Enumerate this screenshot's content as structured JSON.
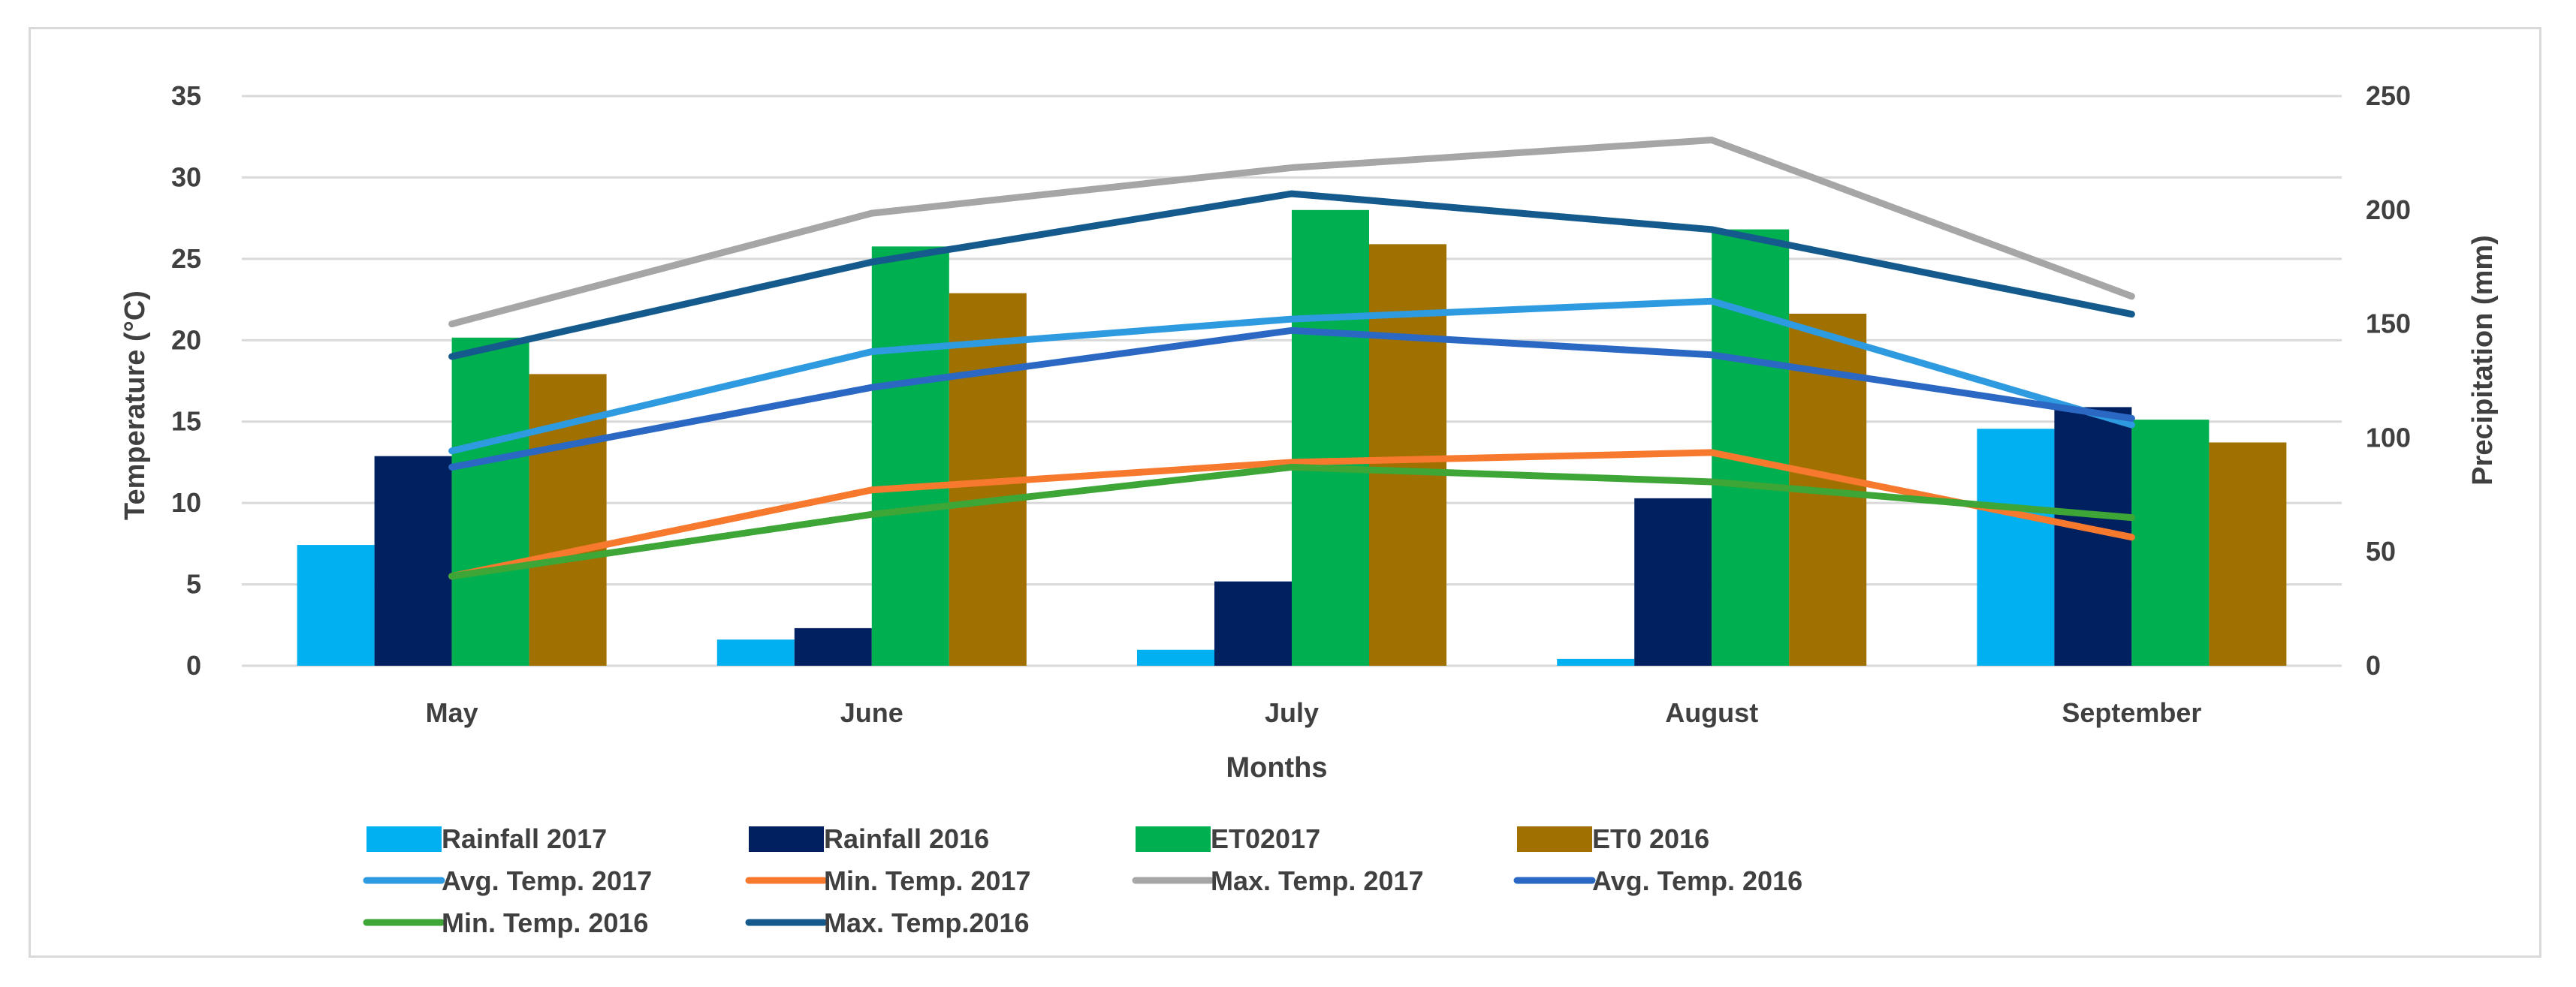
{
  "chart_data": {
    "type": "bar",
    "categories": [
      "May",
      "June",
      "July",
      "August",
      "September"
    ],
    "xlabel": "Months",
    "ylabel": "Temperature (°C)",
    "y2label": "Precipitation (mm)",
    "ylim": [
      0,
      35
    ],
    "y2lim": [
      0,
      250
    ],
    "yticks": [
      0,
      5,
      10,
      15,
      20,
      25,
      30,
      35
    ],
    "y2ticks": [
      0,
      50,
      100,
      150,
      200,
      250
    ],
    "grid": true,
    "legend_position": "bottom",
    "bar_series": [
      {
        "name": "Rainfall 2017",
        "color": "#00b0f0",
        "axis": "right",
        "values": [
          53,
          11.5,
          7,
          3,
          104
        ]
      },
      {
        "name": "Rainfall 2016",
        "color": "#002060",
        "axis": "right",
        "values": [
          92,
          16.5,
          37,
          73.5,
          113.5
        ]
      },
      {
        "name": "ET02017",
        "color": "#00b050",
        "axis": "right",
        "values": [
          144,
          184,
          200,
          191.5,
          108
        ]
      },
      {
        "name": "ET0 2016",
        "color": "#a07000",
        "axis": "right",
        "values": [
          128,
          163.5,
          185,
          154.5,
          98
        ]
      }
    ],
    "line_series": [
      {
        "name": "Avg. Temp. 2017",
        "color": "#2e9ae0",
        "axis": "left",
        "values": [
          13.2,
          19.3,
          21.3,
          22.4,
          14.8
        ]
      },
      {
        "name": "Min. Temp. 2017",
        "color": "#f7792e",
        "axis": "left",
        "values": [
          5.5,
          10.8,
          12.5,
          13.1,
          7.9
        ]
      },
      {
        "name": "Max. Temp. 2017",
        "color": "#a6a6a6",
        "axis": "left",
        "values": [
          21,
          27.8,
          30.6,
          32.3,
          22.7
        ]
      },
      {
        "name": "Avg. Temp. 2016",
        "color": "#2a68c4",
        "axis": "left",
        "values": [
          12.2,
          17.1,
          20.6,
          19.1,
          15.2
        ]
      },
      {
        "name": "Min. Temp. 2016",
        "color": "#3ea636",
        "axis": "left",
        "values": [
          5.5,
          9.3,
          12.2,
          11.3,
          9.1
        ]
      },
      {
        "name": "Max. Temp.2016",
        "color": "#145a8c",
        "axis": "left",
        "values": [
          19,
          24.8,
          29,
          26.8,
          21.6
        ]
      }
    ],
    "legend_order": [
      "Rainfall 2017",
      "Rainfall 2016",
      "ET02017",
      "ET0 2016",
      "Avg. Temp. 2017",
      "Min. Temp. 2017",
      "Max. Temp. 2017",
      "Avg. Temp. 2016",
      "Min. Temp. 2016",
      "Max. Temp.2016"
    ]
  }
}
